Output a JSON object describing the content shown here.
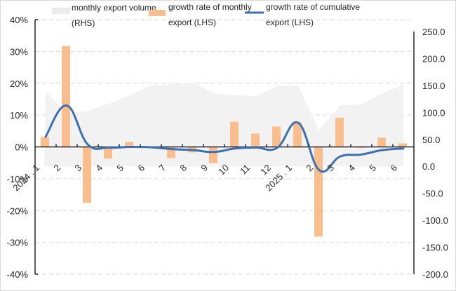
{
  "chart_data": {
    "type": "bar",
    "title": "",
    "xlabel": "",
    "ylabel_left": "",
    "ylabel_right": "",
    "categories": [
      "2024 . 1",
      "2",
      "3",
      "4",
      "5",
      "6",
      "7",
      "8",
      "9",
      "10",
      "11",
      "12",
      "2025 . 1",
      "2",
      "3",
      "4",
      "5",
      "6"
    ],
    "left_axis": {
      "ylim": [
        -40,
        40
      ],
      "ticks": [
        40,
        30,
        20,
        10,
        0,
        -10,
        -20,
        -30,
        -40
      ],
      "tick_labels": [
        "40%",
        "30%",
        "20%",
        "10%",
        "0%",
        "-10%",
        "-20%",
        "-30%",
        "-40%"
      ]
    },
    "right_axis": {
      "ylim": [
        -200,
        250
      ],
      "ticks": [
        250,
        200,
        150,
        100,
        50,
        0,
        -50,
        -100,
        -150,
        -200
      ],
      "tick_labels": [
        "250.0",
        "200.0",
        "150.0",
        "100.0",
        "50.0",
        "0.0",
        "-50.0",
        "-100.0",
        "-150.0",
        "-200.0"
      ]
    },
    "grid": true,
    "legend_position": "top",
    "series": [
      {
        "name": "monthly export volume (RHS)",
        "legend_lines": [
          "monthly export volume",
          "(RHS)"
        ],
        "type": "area",
        "axis": "right",
        "color": "#f2f2f2",
        "values": [
          139,
          99,
          103,
          116,
          132,
          150,
          152,
          156,
          135,
          132,
          130,
          149,
          149,
          67,
          113,
          115,
          135,
          152
        ]
      },
      {
        "name": "growth rate of monthly export (LHS)",
        "legend_lines": [
          "growth rate of monthly",
          "export (LHS)"
        ],
        "type": "bar",
        "axis": "left",
        "color": "#f8be8e",
        "values": [
          3.1,
          31.7,
          -17.6,
          -3.7,
          1.6,
          0.1,
          -3.5,
          -1.7,
          -5.1,
          7.9,
          4.2,
          6.4,
          7.7,
          -28.2,
          9.2,
          -0.3,
          2.9,
          1.1
        ]
      },
      {
        "name": "growth rate of cumulative export (LHS)",
        "legend_lines": [
          "growth rate of cumulative",
          "export (LHS)"
        ],
        "type": "line",
        "axis": "left",
        "color": "#3e6fb0",
        "values": [
          3.2,
          13.0,
          0.8,
          -0.2,
          0.0,
          -0.1,
          -0.7,
          -1.0,
          -1.6,
          -0.5,
          -0.2,
          -0.3,
          7.6,
          -7.3,
          -3.0,
          -2.4,
          -1.0,
          -0.5
        ]
      }
    ]
  }
}
